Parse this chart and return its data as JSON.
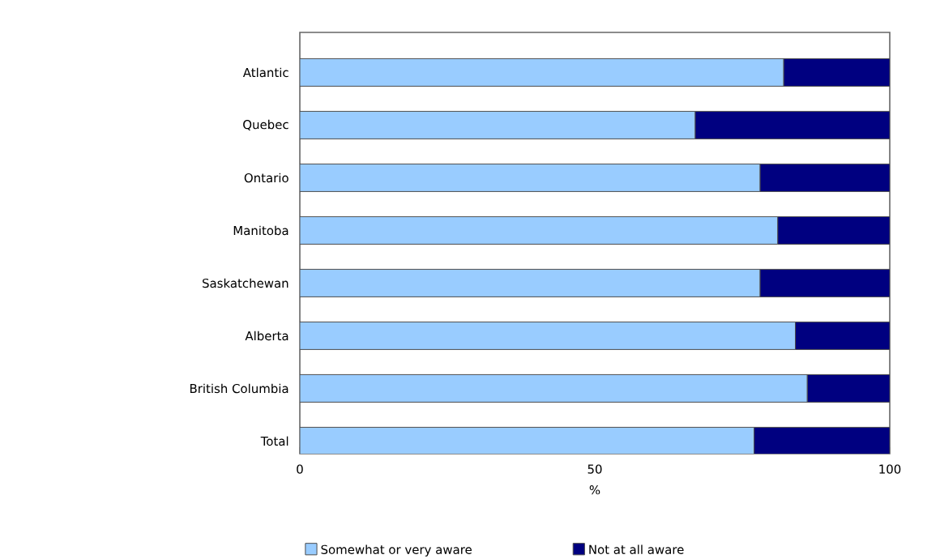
{
  "chart_data": {
    "type": "bar",
    "orientation": "horizontal",
    "stacked": true,
    "categories": [
      "Atlantic",
      "Quebec",
      "Ontario",
      "Manitoba",
      "Saskatchewan",
      "Alberta",
      "British Columbia",
      "Total"
    ],
    "series": [
      {
        "name": "Somewhat or very aware",
        "color": "#99ccff",
        "values": [
          82,
          67,
          78,
          81,
          78,
          84,
          86,
          77
        ]
      },
      {
        "name": "Not at all aware",
        "color": "#000080",
        "values": [
          18,
          33,
          22,
          19,
          22,
          16,
          14,
          23
        ]
      }
    ],
    "xlabel": "%",
    "xlim": [
      0,
      100
    ],
    "xticks": [
      0,
      50,
      100
    ],
    "grid": false,
    "legend": "bottom"
  }
}
